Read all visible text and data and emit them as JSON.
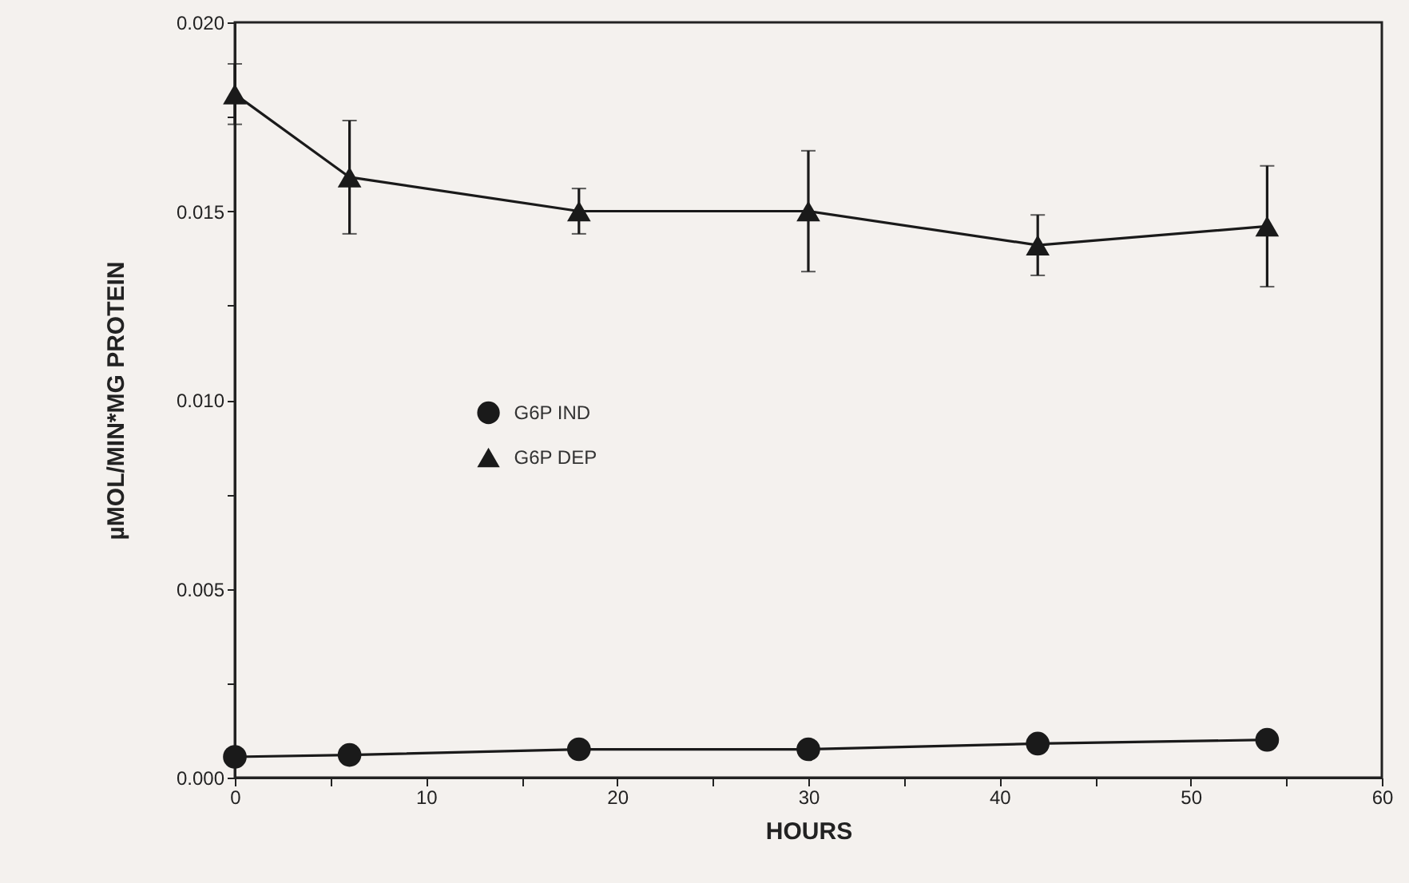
{
  "chart_data": {
    "type": "line",
    "xlabel": "HOURS",
    "ylabel": "µMOL/MIN*MG  PROTEIN",
    "x": [
      0,
      6,
      18,
      30,
      42,
      54
    ],
    "series": [
      {
        "name": "G6P IND",
        "color": "#1a1a1a",
        "marker": "circle",
        "values": [
          0.00055,
          0.0006,
          0.00075,
          0.00075,
          0.0009,
          0.001
        ]
      },
      {
        "name": "G6P DEP",
        "color": "#1a1a1a",
        "marker": "triangle",
        "values": [
          0.0181,
          0.0159,
          0.015,
          0.015,
          0.0141,
          0.0146
        ],
        "errors": [
          0.0008,
          0.0015,
          0.0006,
          0.0016,
          0.0008,
          0.0016
        ]
      }
    ],
    "xlim": [
      0,
      60
    ],
    "xticks": [
      0,
      {
        "value": 5,
        "label": null
      },
      10,
      {
        "value": 15,
        "label": null
      },
      20,
      {
        "value": 25,
        "label": null
      },
      30,
      {
        "value": 35,
        "label": null
      },
      40,
      {
        "value": 45,
        "label": null
      },
      50,
      {
        "value": 55,
        "label": null
      },
      60
    ],
    "ylim": [
      0,
      0.02
    ],
    "yticks": [
      {
        "value": 0,
        "label": "0.000"
      },
      {
        "value": 0.0025,
        "label": null
      },
      {
        "value": 0.005,
        "label": "0.005"
      },
      {
        "value": 0.0075,
        "label": null
      },
      {
        "value": 0.01,
        "label": "0.010"
      },
      {
        "value": 0.0125,
        "label": null
      },
      {
        "value": 0.015,
        "label": "0.015"
      },
      {
        "value": 0.0175,
        "label": null
      },
      {
        "value": 0.02,
        "label": "0.020"
      }
    ],
    "legend": "left",
    "grid": false,
    "line_style": "solid"
  }
}
